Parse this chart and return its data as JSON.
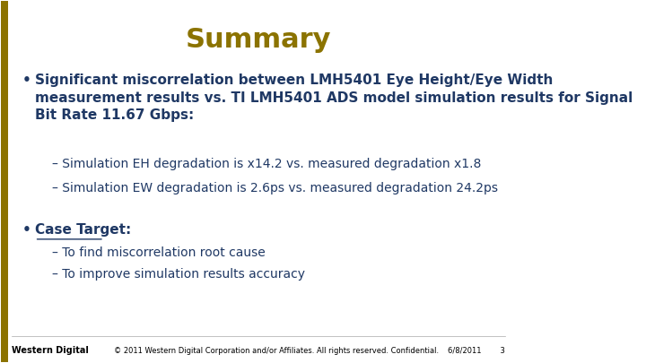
{
  "title": "Summary",
  "title_color": "#8B7300",
  "title_fontsize": 22,
  "title_fontstyle": "bold",
  "bg_color": "#FFFFFF",
  "left_bar_color": "#8B7300",
  "left_bar_width": 8,
  "bullet1_bold": "Significant miscorrelation between LMH5401 Eye Height/Eye Width\nmeasurement results vs. TI LMH5401 ADS model simulation results for Signal\nBit Rate 11.67 Gbps:",
  "bullet1_color": "#1F3864",
  "bullet1_fontsize": 11,
  "sub1": "Simulation EH degradation is x14.2 vs. measured degradation x1.8",
  "sub2": "Simulation EW degradation is 2.6ps vs. measured degradation 24.2ps",
  "sub_color": "#1F3864",
  "sub_fontsize": 10,
  "bullet2": "Case Target:",
  "bullet2_color": "#1F3864",
  "bullet2_fontsize": 11,
  "bullet2_underline": true,
  "sub3": "To find miscorrelation root cause",
  "sub4": "To improve simulation results accuracy",
  "footer_left_bold": "Western Digital",
  "footer_left_color": "#000000",
  "footer_center": "© 2011 Western Digital Corporation and/or Affiliates. All rights reserved. Confidential.",
  "footer_right": "6/8/2011        3",
  "footer_fontsize": 6
}
